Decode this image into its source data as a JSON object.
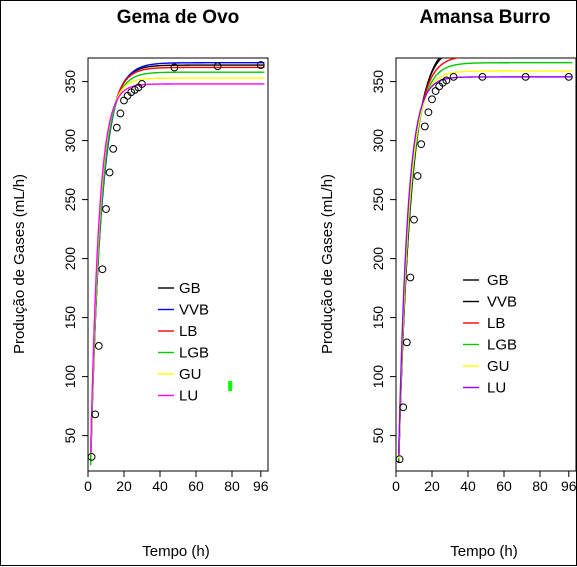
{
  "chart_data": [
    {
      "type": "line",
      "title": "Gema de Ovo",
      "xlabel": "Tempo (h)",
      "ylabel": "Produção de Gases (mL/h)",
      "xlim": [
        0,
        100
      ],
      "ylim": [
        20,
        370
      ],
      "xticks": [
        0,
        20,
        40,
        60,
        80,
        96
      ],
      "yticks": [
        50,
        100,
        150,
        200,
        250,
        300,
        350
      ],
      "legend_position": "center-right",
      "legend_marker": {
        "color": "#00ff00",
        "x": 79,
        "y": 92
      },
      "observed": {
        "x": [
          2,
          4,
          6,
          8,
          10,
          12,
          14,
          16,
          18,
          20,
          22,
          24,
          26,
          28,
          30,
          48,
          72,
          96
        ],
        "y": [
          32,
          68,
          126,
          191,
          242,
          273,
          293,
          311,
          323,
          334,
          338,
          341,
          343,
          345,
          348,
          362,
          363,
          364
        ]
      },
      "series": [
        {
          "name": "GB",
          "color": "#000000",
          "vmax": 364,
          "k": 0.17,
          "lag": 1.0,
          "x0": 1.5
        },
        {
          "name": "VVB",
          "color": "#0000ff",
          "vmax": 366,
          "k": 0.16,
          "lag": 0.8,
          "x0": 1.5
        },
        {
          "name": "LB",
          "color": "#ff0000",
          "vmax": 362,
          "k": 0.175,
          "lag": 1.0,
          "x0": 1.5
        },
        {
          "name": "LGB",
          "color": "#00cc00",
          "vmax": 358,
          "k": 0.18,
          "lag": 1.1,
          "x0": 1.5
        },
        {
          "name": "GU",
          "color": "#ffff00",
          "vmax": 353,
          "k": 0.2,
          "lag": 1.0,
          "x0": 1.5
        },
        {
          "name": "LU",
          "color": "#ff00ff",
          "vmax": 348,
          "k": 0.215,
          "lag": 1.0,
          "x0": 1.5
        }
      ]
    },
    {
      "type": "line",
      "title": "Amansa Burro",
      "xlabel": "Tempo (h)",
      "ylabel": "Produção de Gases (mL/h)",
      "xlim": [
        0,
        100
      ],
      "ylim": [
        20,
        370
      ],
      "xticks": [
        0,
        20,
        40,
        60,
        80,
        96
      ],
      "yticks": [
        50,
        100,
        150,
        200,
        250,
        300,
        350
      ],
      "legend_position": "center-right",
      "observed": {
        "x": [
          2,
          4,
          6,
          8,
          10,
          12,
          14,
          16,
          18,
          20,
          22,
          24,
          26,
          28,
          32,
          48,
          72,
          96
        ],
        "y": [
          30,
          74,
          129,
          184,
          233,
          270,
          297,
          312,
          324,
          335,
          342,
          346,
          349,
          351,
          354,
          354,
          354,
          354
        ]
      },
      "series": [
        {
          "name": "GB",
          "color": "#000000",
          "vmax": 380,
          "k": 0.15,
          "lag": 1.0,
          "x0": 1.5
        },
        {
          "name": "VVB",
          "color": "#000000",
          "vmax": 385,
          "k": 0.14,
          "lag": 0.8,
          "x0": 1.5
        },
        {
          "name": "LB",
          "color": "#ff0000",
          "vmax": 372,
          "k": 0.16,
          "lag": 1.0,
          "x0": 1.5
        },
        {
          "name": "LGB",
          "color": "#00cc00",
          "vmax": 366,
          "k": 0.165,
          "lag": 1.0,
          "x0": 1.5
        },
        {
          "name": "GU",
          "color": "#ffff00",
          "vmax": 359,
          "k": 0.18,
          "lag": 1.0,
          "x0": 1.5
        },
        {
          "name": "LU",
          "color": "#9900ff",
          "vmax": 354,
          "k": 0.2,
          "lag": 1.0,
          "x0": 1.5
        }
      ]
    }
  ]
}
